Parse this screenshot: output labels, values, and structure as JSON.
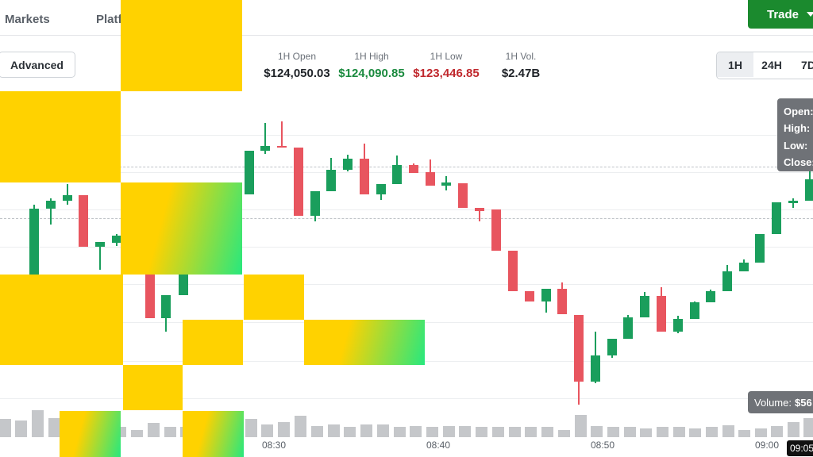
{
  "nav": {
    "items": [
      "Markets",
      "Platf"
    ]
  },
  "trade_button": {
    "label": "Trade"
  },
  "advanced_button": {
    "label": "Advanced"
  },
  "stats": [
    {
      "label": "1H Open",
      "value": "$124,050.03",
      "color": "#1f2328"
    },
    {
      "label": "1H High",
      "value": "$124,090.85",
      "color": "#1a8a3e"
    },
    {
      "label": "1H Low",
      "value": "$123,446.85",
      "color": "#c0282d"
    },
    {
      "label": "1H Vol.",
      "value": "$2.47B",
      "color": "#1f2328"
    }
  ],
  "ranges": [
    {
      "label": "1H",
      "active": true
    },
    {
      "label": "24H",
      "active": false
    },
    {
      "label": "7D",
      "active": false
    }
  ],
  "tooltip": {
    "lines": [
      "Open:",
      "High:",
      "Low:",
      "Close:"
    ]
  },
  "volume_tip": {
    "label": "Volume:",
    "value": "$56"
  },
  "x_ticks": [
    "08:30",
    "08:40",
    "08:50",
    "09:00"
  ],
  "time_badge": "09:05",
  "colors": {
    "up": "#1a9e5c",
    "down": "#e8555f",
    "volume": "#c5c7ca",
    "redaction_yellow": "#ffd200",
    "redaction_green": "#27e87e"
  }
}
